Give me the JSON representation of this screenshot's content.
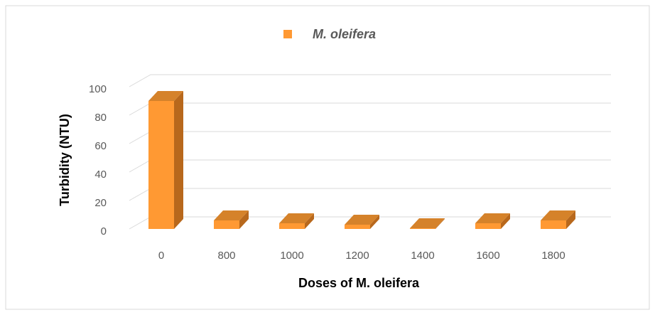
{
  "chart_data": {
    "type": "bar3d",
    "categories": [
      "0",
      "800",
      "1000",
      "1200",
      "1400",
      "1600",
      "1800"
    ],
    "series": [
      {
        "name": "M. oleifera",
        "color": "#ff9933",
        "values": [
          90,
          6,
          4,
          3,
          0.5,
          4,
          6
        ]
      }
    ],
    "y_label": "Turbidity (NTU)",
    "x_label": "Doses of M. oleifera",
    "ylim": [
      0,
      100
    ],
    "yticks": [
      0,
      20,
      40,
      60,
      80,
      100
    ],
    "grid": true,
    "legend": "top"
  }
}
